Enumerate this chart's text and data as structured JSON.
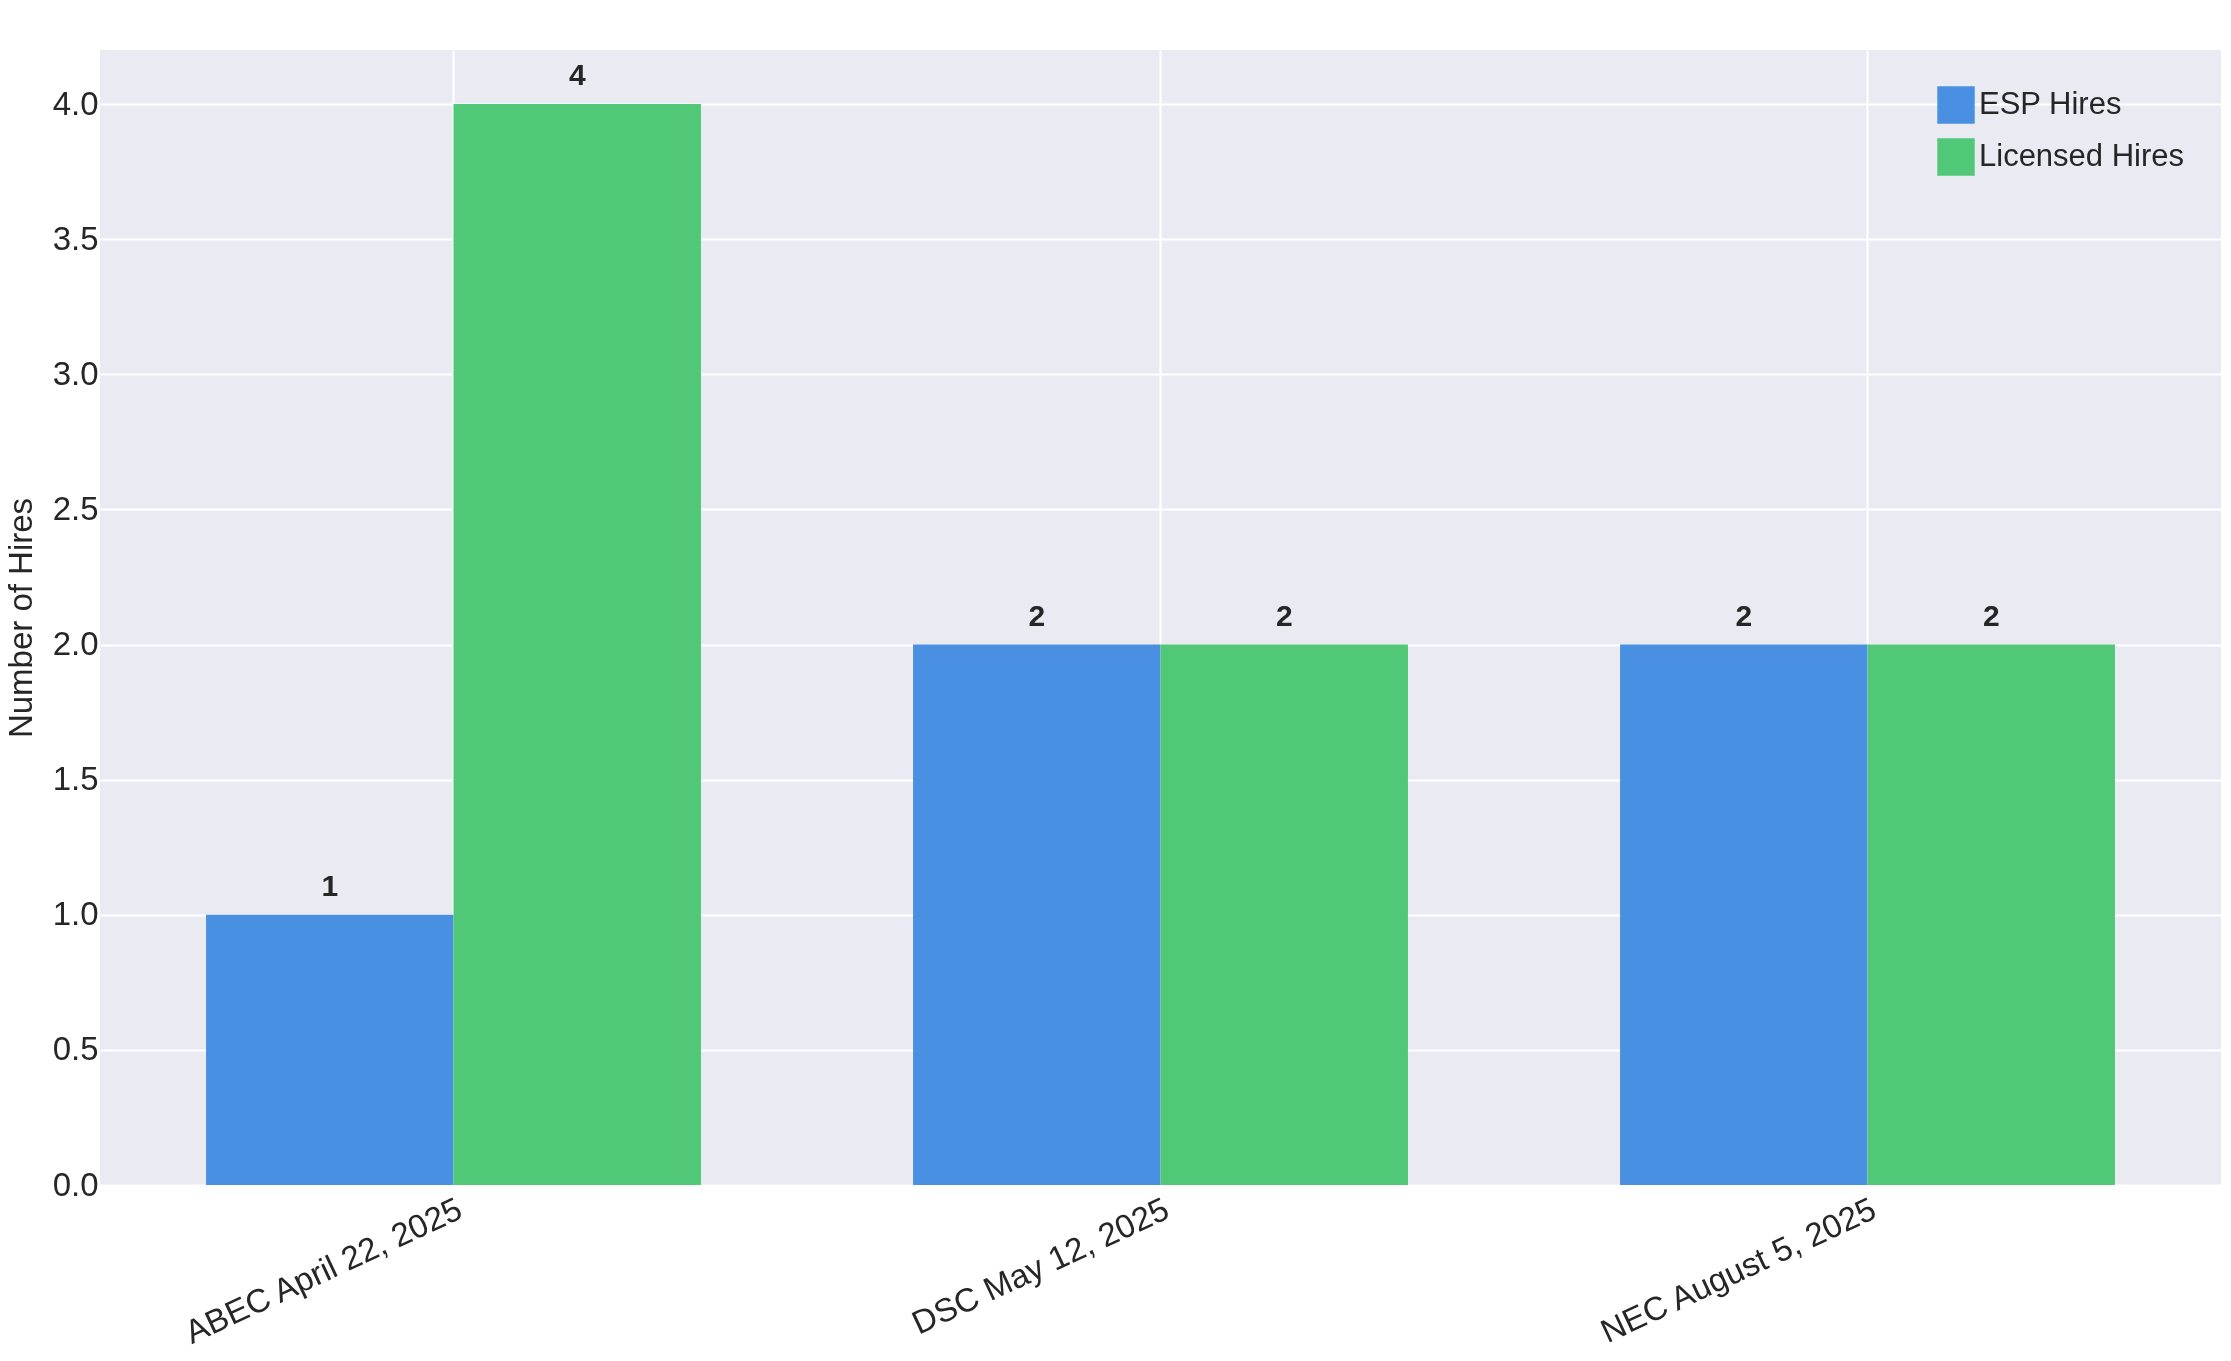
{
  "chart_data": {
    "type": "bar",
    "ylabel": "Number of Hires",
    "categories": [
      "ABEC April 22, 2025",
      "DSC May 12, 2025",
      "NEC August 5, 2025"
    ],
    "series": [
      {
        "name": "ESP Hires",
        "color": "#4a90e2",
        "values": [
          1,
          2,
          2
        ]
      },
      {
        "name": "Licensed Hires",
        "color": "#50c878",
        "values": [
          4,
          2,
          2
        ]
      }
    ],
    "ylim": [
      0,
      4.2
    ],
    "yticks": [
      {
        "value": 0,
        "label": "0.0"
      },
      0.5,
      {
        "value": 1,
        "label": "1.0"
      },
      1.5,
      {
        "value": 2,
        "label": "2.0"
      },
      2.5,
      {
        "value": 3,
        "label": "3.0"
      },
      3.5,
      {
        "value": 4,
        "label": "4.0"
      }
    ],
    "data_labels": true,
    "grid": true,
    "legend": "top right"
  }
}
